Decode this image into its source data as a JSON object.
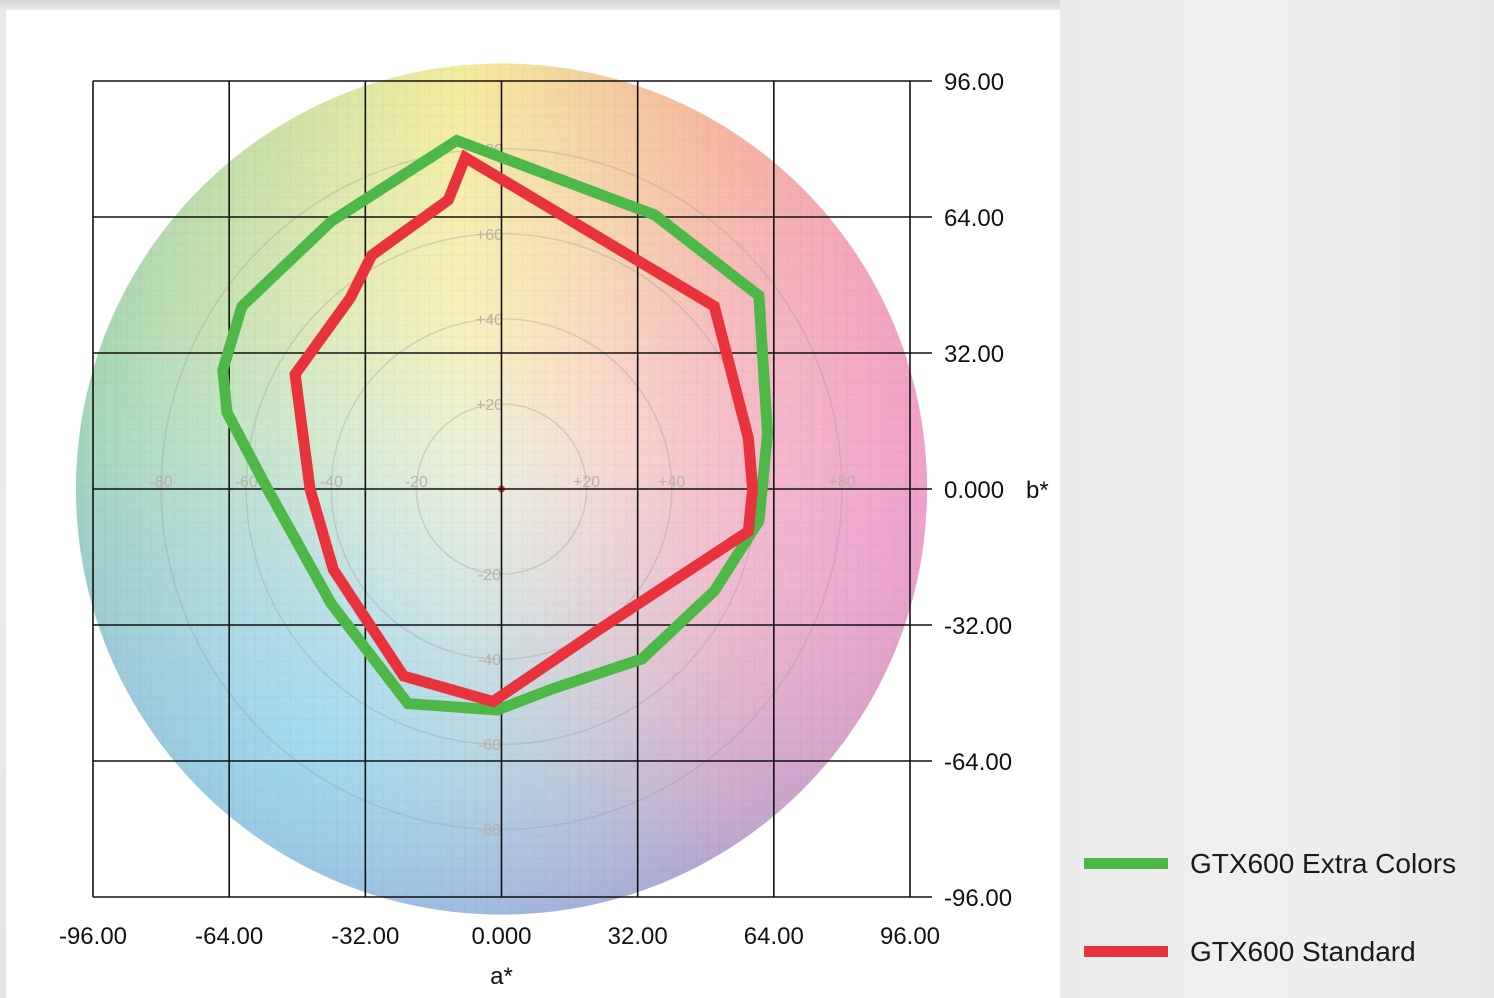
{
  "chart_data": {
    "type": "line",
    "title": "",
    "xlabel": "a*",
    "ylabel": "b*",
    "xlim": [
      -96,
      96
    ],
    "ylim": [
      -96,
      96
    ],
    "grid": true,
    "x_ticks": [
      "-96.00",
      "-64.00",
      "-32.00",
      "0.000",
      "32.00",
      "64.00",
      "96.00"
    ],
    "y_ticks": [
      "96.00",
      "64.00",
      "32.00",
      "0.000",
      "-32.00",
      "-64.00",
      "-96.00"
    ],
    "background_wheel_labels": [
      "-80",
      "-60",
      "-40",
      "-20",
      "+20",
      "+40",
      "+60",
      "+80",
      "+80",
      "+60",
      "+40",
      "+20",
      "-20",
      "-40",
      "-60",
      "-80"
    ],
    "legend_position": "bottom-right",
    "series": [
      {
        "name": "GTX600 Extra Colors",
        "color": "#4db848",
        "closed": true,
        "points": [
          [
            -10.5,
            82
          ],
          [
            36,
            64.5
          ],
          [
            60.5,
            45.5
          ],
          [
            62.5,
            13
          ],
          [
            60.5,
            -7.5
          ],
          [
            50,
            -24
          ],
          [
            33,
            -40
          ],
          [
            12,
            -47
          ],
          [
            -1,
            -52
          ],
          [
            -22,
            -50.5
          ],
          [
            -40,
            -27
          ],
          [
            -55,
            0
          ],
          [
            -64.5,
            18
          ],
          [
            -65.5,
            28
          ],
          [
            -61,
            43
          ],
          [
            -40,
            63
          ]
        ],
        "values": [
          82,
          64.5,
          45.5,
          13,
          -7.5,
          -24,
          -40,
          -47,
          -52,
          -50.5,
          -27,
          0,
          18,
          28,
          43,
          63
        ]
      },
      {
        "name": "GTX600 Standard",
        "color": "#e8333c",
        "closed": true,
        "points": [
          [
            -8.5,
            78
          ],
          [
            -12.5,
            68
          ],
          [
            -30.5,
            55
          ],
          [
            -35.5,
            45
          ],
          [
            -48.5,
            27
          ],
          [
            -45,
            0
          ],
          [
            -39.5,
            -19
          ],
          [
            -23,
            -44
          ],
          [
            -2,
            -50
          ],
          [
            23,
            -33
          ],
          [
            58,
            -10
          ],
          [
            59,
            0
          ],
          [
            58,
            12
          ],
          [
            50,
            43
          ],
          [
            -8.5,
            78
          ]
        ],
        "values": [
          78,
          68,
          55,
          45,
          27,
          0,
          -19,
          -44,
          -50,
          -33,
          -10,
          0,
          12,
          43,
          78
        ]
      }
    ]
  }
}
